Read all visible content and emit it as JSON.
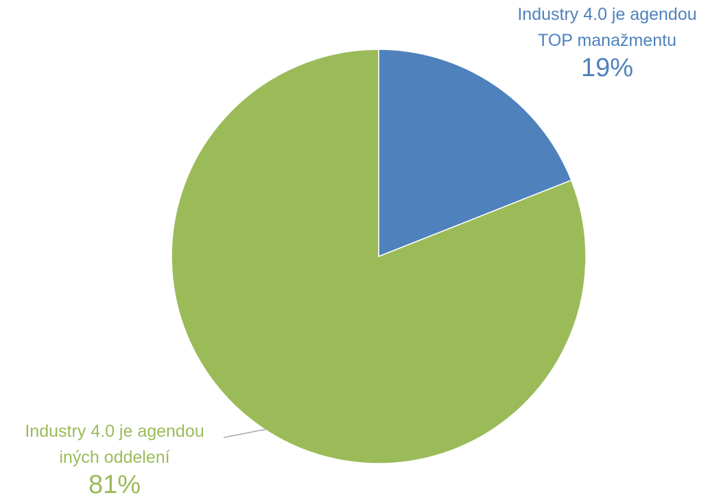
{
  "chart_data": {
    "type": "pie",
    "title": "",
    "legend": "none",
    "slices": [
      {
        "label_lines": [
          "Industry 4.0 je agendou",
          "TOP manažmentu"
        ],
        "value": 19,
        "value_label": "19%",
        "color": "#4f81bd"
      },
      {
        "label_lines": [
          "Industry 4.0 je agendou",
          "iných oddelení"
        ],
        "value": 81,
        "value_label": "81%",
        "color": "#9bbb59"
      }
    ]
  }
}
